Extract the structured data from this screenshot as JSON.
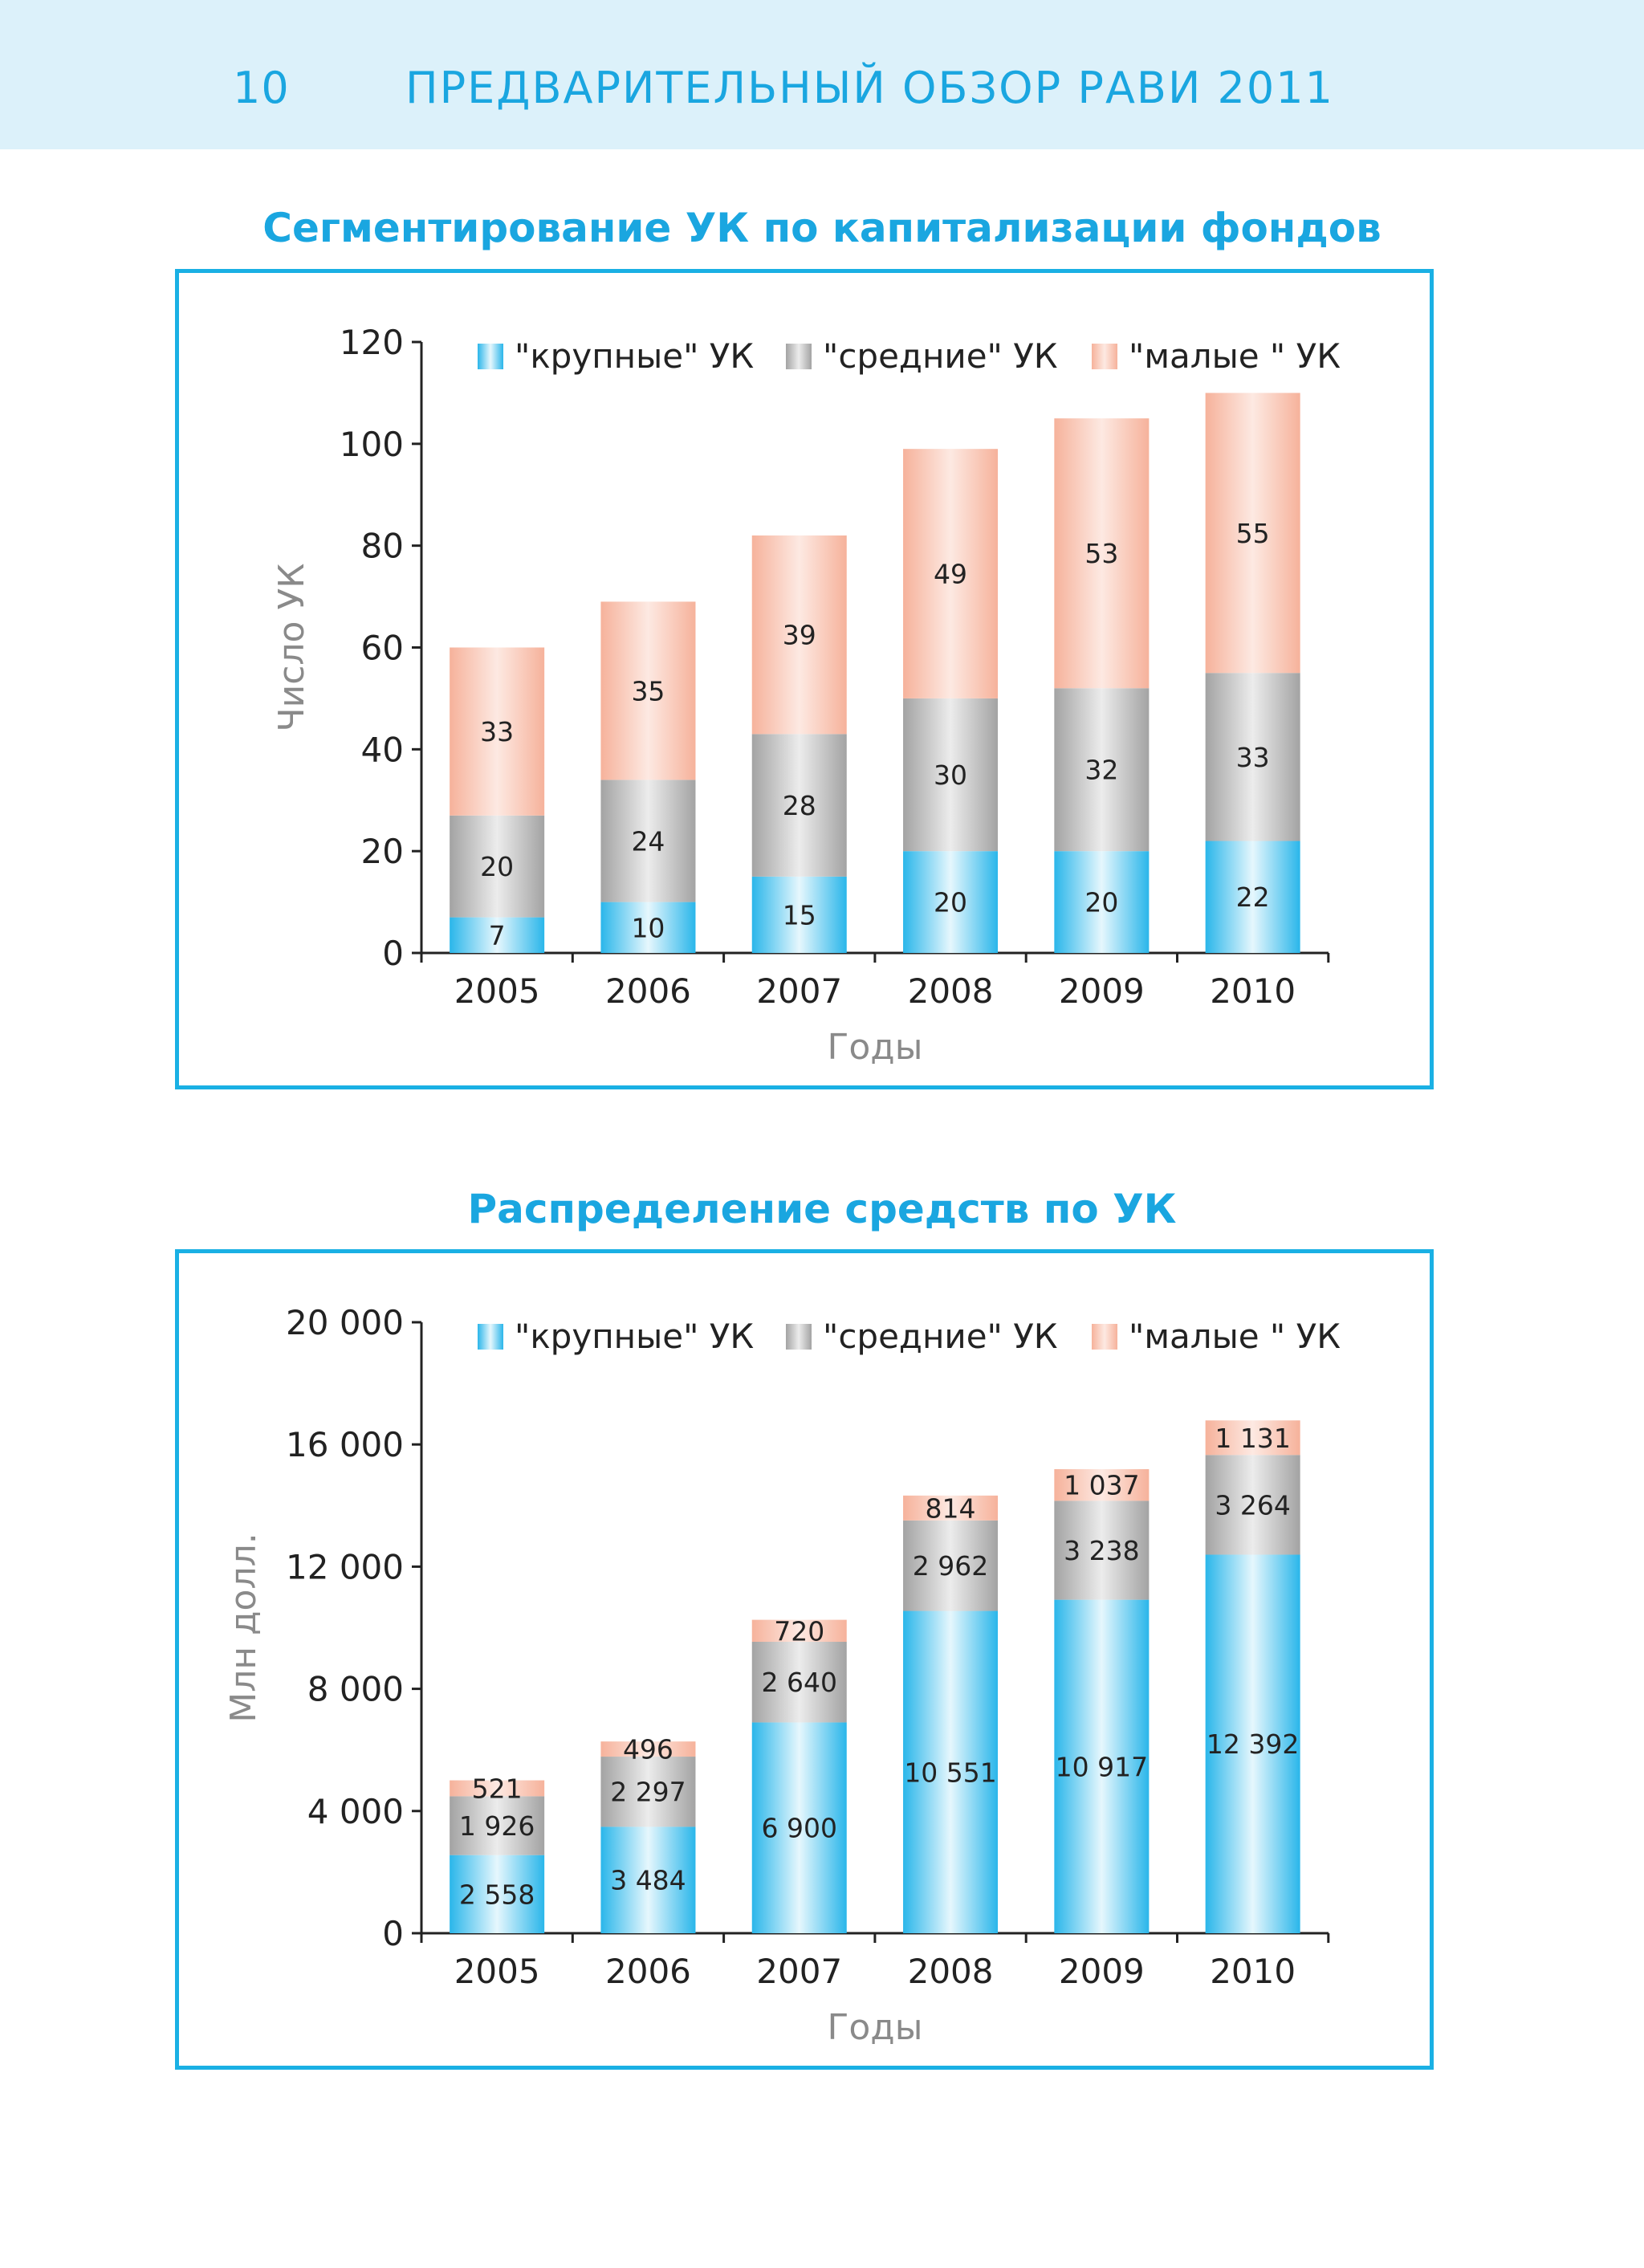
{
  "header": {
    "page_number": "10",
    "title": "ПРЕДВАРИТЕЛЬНЫЙ ОБЗОР РАВИ 2011"
  },
  "colors": {
    "accent": "#1aa6e0",
    "large": "#2ebcee",
    "medium": "#a9a9a9",
    "small": "#f7b8a2",
    "header_bg": "#dcf1fa"
  },
  "chart_data": [
    {
      "type": "bar",
      "stacked": true,
      "title": "Сегментирование УК по капитализации фондов",
      "xlabel": "Годы",
      "ylabel": "Число УК",
      "ylim": [
        0,
        120
      ],
      "yticks": [
        0,
        20,
        40,
        60,
        80,
        100,
        120
      ],
      "ytick_labels": [
        "0",
        "20",
        "40",
        "60",
        "80",
        "100",
        "120"
      ],
      "categories": [
        "2005",
        "2006",
        "2007",
        "2008",
        "2009",
        "2010"
      ],
      "legend_position": "top",
      "series": [
        {
          "name": "\"крупные\" УК",
          "key": "large",
          "values": [
            7,
            10,
            15,
            20,
            20,
            22
          ],
          "labels": [
            "7",
            "10",
            "15",
            "20",
            "20",
            "22"
          ]
        },
        {
          "name": "\"средние\" УК",
          "key": "medium",
          "values": [
            20,
            24,
            28,
            30,
            32,
            33
          ],
          "labels": [
            "20",
            "24",
            "28",
            "30",
            "32",
            "33"
          ]
        },
        {
          "name": "\"малые \" УК",
          "key": "small",
          "values": [
            33,
            35,
            39,
            49,
            53,
            55
          ],
          "labels": [
            "33",
            "35",
            "39",
            "49",
            "53",
            "55"
          ]
        }
      ]
    },
    {
      "type": "bar",
      "stacked": true,
      "title": "Распределение средств по УК",
      "xlabel": "Годы",
      "ylabel": "Млн долл.",
      "ylim": [
        0,
        20000
      ],
      "yticks": [
        0,
        4000,
        8000,
        12000,
        16000,
        20000
      ],
      "ytick_labels": [
        "0",
        "4 000",
        "8 000",
        "12 000",
        "16 000",
        "20 000"
      ],
      "categories": [
        "2005",
        "2006",
        "2007",
        "2008",
        "2009",
        "2010"
      ],
      "legend_position": "top",
      "series": [
        {
          "name": "\"крупные\" УК",
          "key": "large",
          "values": [
            2558,
            3484,
            6900,
            10551,
            10917,
            12392
          ],
          "labels": [
            "2 558",
            "3 484",
            "6 900",
            "10 551",
            "10 917",
            "12 392"
          ]
        },
        {
          "name": "\"средние\" УК",
          "key": "medium",
          "values": [
            1926,
            2297,
            2640,
            2962,
            3238,
            3264
          ],
          "labels": [
            "1 926",
            "2 297",
            "2 640",
            "2 962",
            "3 238",
            "3 264"
          ]
        },
        {
          "name": "\"малые \" УК",
          "key": "small",
          "values": [
            521,
            496,
            720,
            814,
            1037,
            1131
          ],
          "labels": [
            "521",
            "496",
            "720",
            "814",
            "1 037",
            "1 131"
          ]
        }
      ]
    }
  ]
}
